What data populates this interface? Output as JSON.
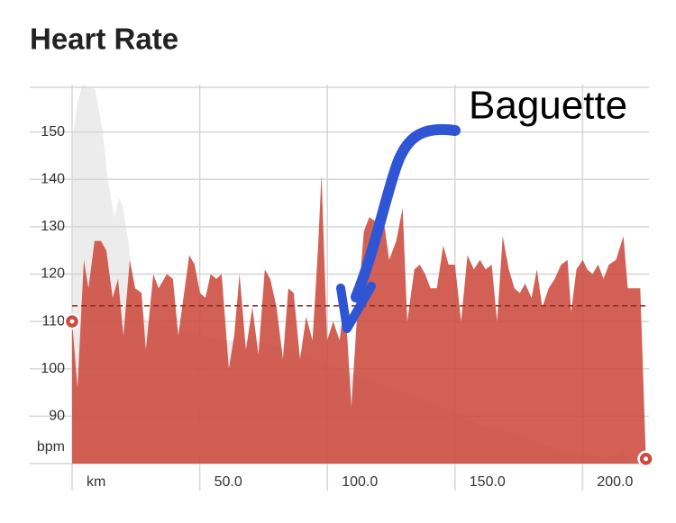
{
  "chart_data": {
    "type": "area",
    "title": "Heart Rate",
    "annotation": "Baguette",
    "x": [
      0,
      2.1,
      4.6,
      6.4,
      8.8,
      11.3,
      13.4,
      15.9,
      18.0,
      20.1,
      22.6,
      24.7,
      27.2,
      28.9,
      31.8,
      33.9,
      37.1,
      39.5,
      41.6,
      45.9,
      48.0,
      50.1,
      52.2,
      54.3,
      56.5,
      58.6,
      61.4,
      63.5,
      65.6,
      68.1,
      70.6,
      73.0,
      75.5,
      77.6,
      80.1,
      82.6,
      84.7,
      86.8,
      89.3,
      91.7,
      94.2,
      96.3,
      97.7,
      99.9,
      102.3,
      104.8,
      106.9,
      109.4,
      111.5,
      114.3,
      116.4,
      119.3,
      121.7,
      124.2,
      127.0,
      129.5,
      131.3,
      134.1,
      136.2,
      138.3,
      140.4,
      142.9,
      145.4,
      147.5,
      150.0,
      152.4,
      154.9,
      157.4,
      159.8,
      162.0,
      164.4,
      166.5,
      168.7,
      171.1,
      173.3,
      175.4,
      177.5,
      180.0,
      182.1,
      184.2,
      186.7,
      189.1,
      191.6,
      194.1,
      195.5,
      197.6,
      200.1,
      201.8,
      203.9,
      206.1,
      208.2,
      210.3,
      213.1,
      216.0,
      217.7,
      219.8,
      222.6,
      224.8
    ],
    "series": [
      {
        "color": "#cc4a3e",
        "values": [
          110,
          96,
          123,
          117,
          127,
          127,
          125,
          115,
          119,
          107,
          123,
          117,
          116,
          104,
          120,
          117,
          120,
          119,
          107,
          124,
          122,
          116,
          115,
          120,
          119,
          120,
          100,
          107,
          120,
          104,
          113,
          103,
          121,
          119,
          113,
          102,
          117,
          116,
          102,
          111,
          106,
          125,
          141,
          106,
          110,
          106,
          115,
          92,
          110,
          129,
          132,
          131,
          133,
          123,
          127,
          134,
          110,
          121,
          122,
          120,
          117,
          117,
          126,
          122,
          122,
          110,
          124,
          121,
          123,
          121,
          122,
          110,
          128,
          121,
          117,
          116,
          118,
          115,
          121,
          113,
          117,
          119,
          122,
          123,
          112,
          121,
          123,
          121,
          120,
          122,
          119,
          122,
          123,
          128,
          117,
          117,
          117,
          81
        ]
      }
    ],
    "background": {
      "color": "#ececec",
      "x": [
        0,
        2,
        4,
        9,
        12,
        14,
        16.5,
        18.5,
        20,
        22,
        24,
        26,
        29,
        33,
        40,
        50,
        60,
        70,
        80,
        90,
        100,
        110,
        120,
        130,
        140,
        150,
        160,
        170,
        180,
        190,
        200,
        210,
        216,
        218,
        225
      ],
      "values": [
        148,
        156,
        160,
        159,
        150,
        140,
        132,
        136,
        134,
        127,
        117,
        115,
        110,
        110,
        109,
        107,
        106,
        106,
        105,
        103,
        101,
        99,
        97,
        95,
        93,
        91,
        88,
        87,
        85,
        83,
        82,
        81,
        83,
        80,
        80
      ]
    },
    "reference_line": {
      "value": 113.3,
      "color": "#8a2a1f"
    },
    "xlim": [
      -16.6,
      226
    ],
    "ylim": [
      80,
      160
    ],
    "xticks": [
      {
        "value": 0,
        "label": "km"
      },
      {
        "value": 50,
        "label": "50.0"
      },
      {
        "value": 100,
        "label": "100.0"
      },
      {
        "value": 150,
        "label": "150.0"
      },
      {
        "value": 200,
        "label": "200.0"
      }
    ],
    "yticks": [
      {
        "value": 80,
        "label": "bpm"
      },
      90,
      100,
      110,
      120,
      130,
      140,
      150
    ],
    "grid": true
  }
}
